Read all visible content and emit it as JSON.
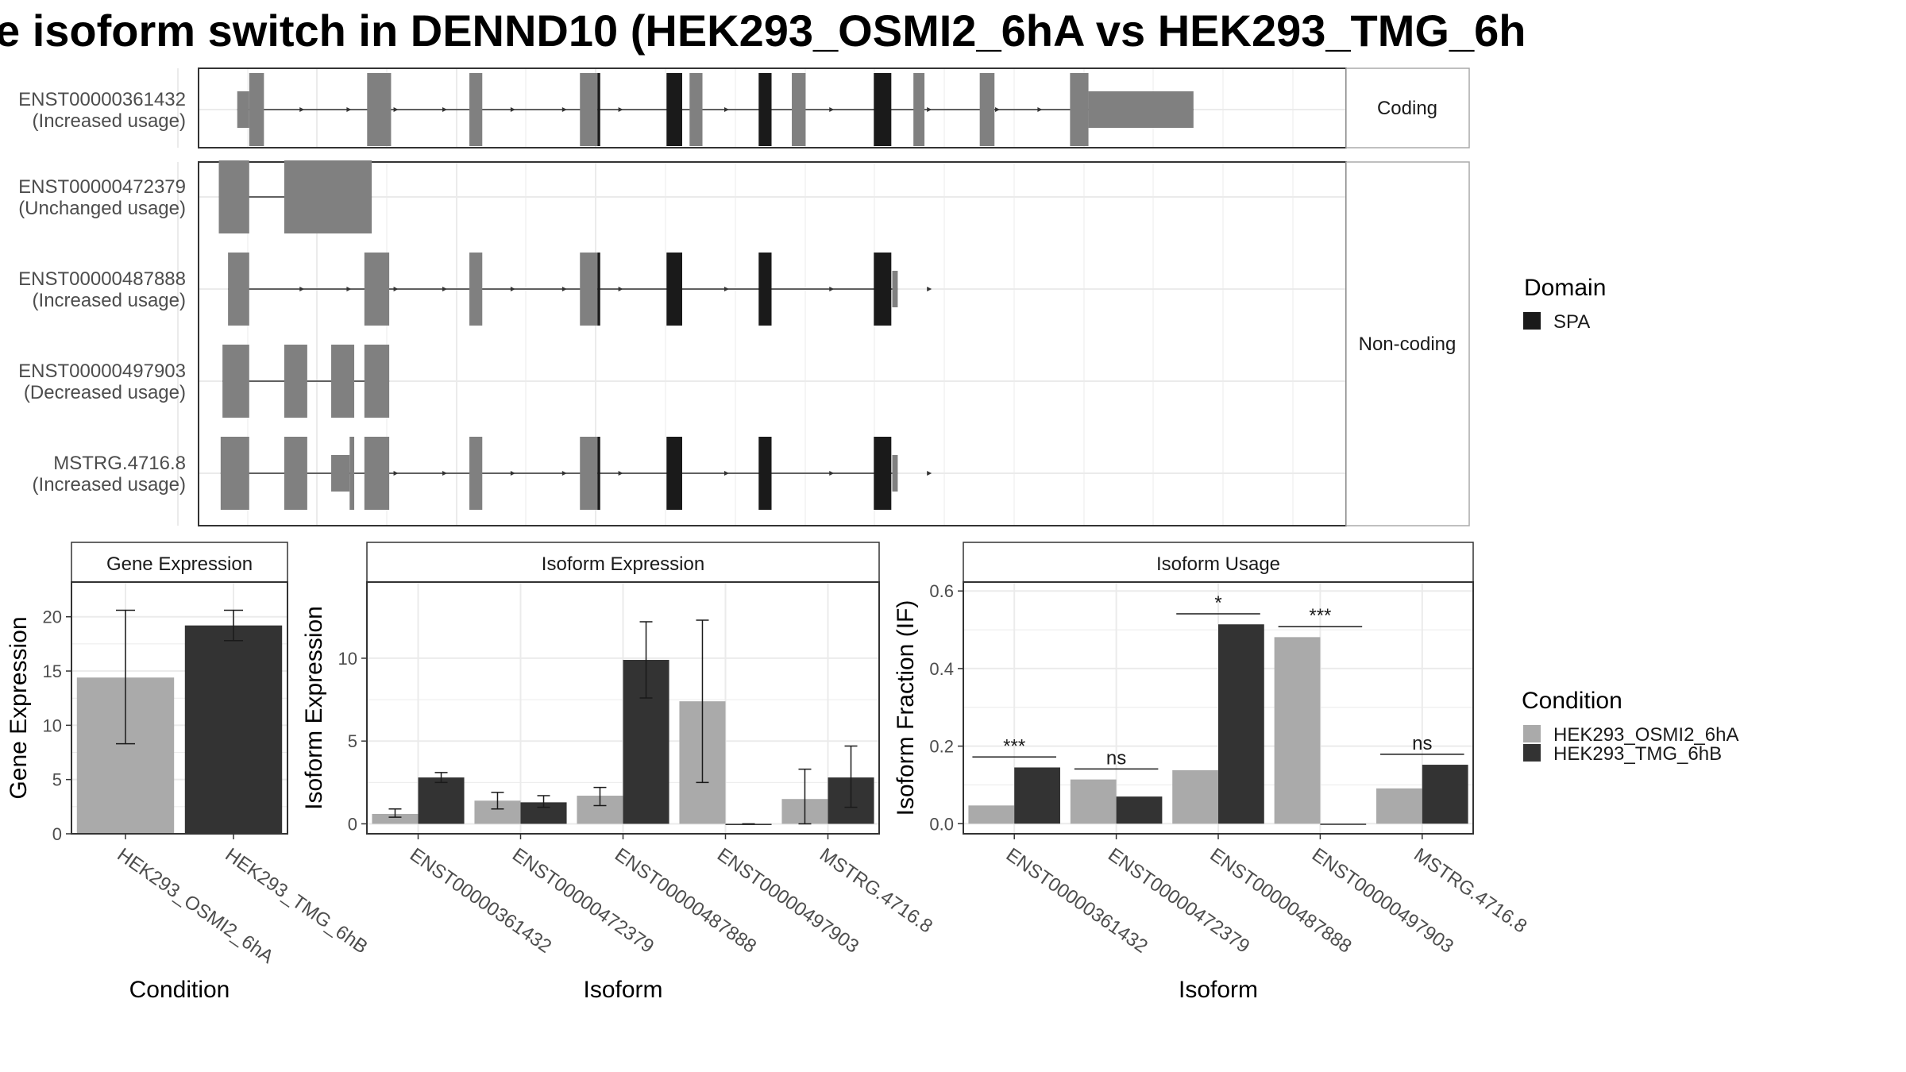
{
  "title": "e isoform switch in DENND10 (HEK293_OSMI2_6hA vs HEK293_TMG_6h",
  "colors": {
    "exon": "#808080",
    "domain": "#1a1a1a",
    "osmi": "#aaaaaa",
    "tmg": "#333333",
    "grid": "#ebebeb",
    "strip_fill": "#ffffff",
    "strip_border": "#aaaaaa"
  },
  "structure": {
    "facets": [
      {
        "label": "Coding",
        "isoforms": [
          0
        ]
      },
      {
        "label": "Non-coding",
        "isoforms": [
          1,
          2,
          3,
          4
        ]
      }
    ],
    "isoforms": [
      {
        "id": "ENST00000361432",
        "usage": "(Increased usage)",
        "exons": [
          [
            4.2,
            5.5,
            "s"
          ],
          [
            5.5,
            7.1,
            "l"
          ],
          [
            18.3,
            20.9,
            "l"
          ],
          [
            29.4,
            30.8,
            "l"
          ],
          [
            41.4,
            43.3,
            "l"
          ],
          [
            53.3,
            54.7,
            "l"
          ],
          [
            64.4,
            65.9,
            "l"
          ],
          [
            77.6,
            78.8,
            "l"
          ],
          [
            84.8,
            86.4,
            "l"
          ],
          [
            94.6,
            96.6,
            "l"
          ],
          [
            96.6,
            108.0,
            "m"
          ]
        ],
        "domains": [
          [
            43.3,
            43.6
          ],
          [
            50.8,
            52.5
          ],
          [
            60.8,
            62.2
          ],
          [
            73.3,
            75.2
          ]
        ],
        "arrows": [
          11.4,
          16.5,
          21.6,
          26.9,
          34.3,
          39.9,
          46.0,
          57.5,
          68.9,
          79.5,
          86.9,
          91.5
        ]
      },
      {
        "id": "ENST00000472379",
        "usage": "(Unchanged usage)",
        "exons": [
          [
            2.2,
            5.5,
            "l"
          ],
          [
            9.3,
            18.8,
            "l"
          ]
        ],
        "domains": [],
        "arrows": []
      },
      {
        "id": "ENST00000487888",
        "usage": "(Increased usage)",
        "exons": [
          [
            3.2,
            5.5,
            "l"
          ],
          [
            18.0,
            20.7,
            "l"
          ],
          [
            29.4,
            30.8,
            "l"
          ],
          [
            41.4,
            43.3,
            "l"
          ],
          [
            75.3,
            75.9,
            "m"
          ]
        ],
        "domains": [
          [
            43.3,
            43.6
          ],
          [
            50.8,
            52.5
          ],
          [
            60.8,
            62.2
          ],
          [
            73.3,
            75.2
          ]
        ],
        "arrows": [
          11.4,
          16.5,
          21.6,
          26.9,
          34.3,
          39.9,
          46.0,
          57.5,
          68.9,
          79.5
        ]
      },
      {
        "id": "ENST00000497903",
        "usage": "(Decreased usage)",
        "exons": [
          [
            2.6,
            5.5,
            "l"
          ],
          [
            9.3,
            11.8,
            "l"
          ],
          [
            14.4,
            16.9,
            "l"
          ],
          [
            18.0,
            20.7,
            "l"
          ]
        ],
        "domains": [],
        "arrows": [
          16.6
        ]
      },
      {
        "id": "MSTRG.4716.8",
        "usage": "(Increased usage)",
        "exons": [
          [
            2.4,
            5.5,
            "l"
          ],
          [
            9.3,
            11.8,
            "l"
          ],
          [
            14.4,
            16.4,
            "m"
          ],
          [
            16.4,
            16.9,
            "l"
          ],
          [
            18.0,
            20.7,
            "l"
          ],
          [
            29.4,
            30.8,
            "l"
          ],
          [
            41.4,
            43.3,
            "l"
          ],
          [
            75.3,
            75.9,
            "m"
          ]
        ],
        "domains": [
          [
            43.3,
            43.6
          ],
          [
            50.8,
            52.5
          ],
          [
            60.8,
            62.2
          ],
          [
            73.3,
            75.2
          ]
        ],
        "arrows": [
          11.4,
          16.5,
          21.6,
          26.9,
          34.3,
          39.9,
          46.0,
          57.5,
          68.9,
          79.5
        ]
      }
    ]
  },
  "legend": {
    "domain_title": "Domain",
    "domain_items": [
      "SPA"
    ],
    "condition_title": "Condition",
    "condition_items": [
      "HEK293_OSMI2_6hA",
      "HEK293_TMG_6hB"
    ]
  },
  "chart_data": [
    {
      "type": "bar",
      "title": "Gene Expression",
      "xlabel": "Condition",
      "ylabel": "Gene Expression",
      "categories": [
        "HEK293_OSMI2_6hA",
        "HEK293_TMG_6hB"
      ],
      "values": [
        14.4,
        19.2
      ],
      "errors": [
        [
          8.3,
          20.6
        ],
        [
          17.8,
          20.6
        ]
      ],
      "ylim": [
        0,
        23.2
      ],
      "yticks": [
        0,
        5,
        10,
        15,
        20
      ],
      "yticklabels": [
        "0",
        "5",
        "10",
        "15",
        "20"
      ]
    },
    {
      "type": "bar",
      "title": "Isoform Expression",
      "xlabel": "Isoform",
      "ylabel": "Isoform Expression",
      "categories": [
        "ENST00000361432",
        "ENST00000472379",
        "ENST00000487888",
        "ENST00000497903",
        "MSTRG.4716.8"
      ],
      "series": [
        {
          "name": "HEK293_OSMI2_6hA",
          "values": [
            0.6,
            1.4,
            1.7,
            7.4,
            1.5
          ],
          "errors": [
            [
              0.4,
              0.9
            ],
            [
              0.9,
              1.9
            ],
            [
              1.1,
              2.2
            ],
            [
              2.5,
              12.3
            ],
            [
              0.0,
              3.3
            ]
          ]
        },
        {
          "name": "HEK293_TMG_6hB",
          "values": [
            2.8,
            1.3,
            9.9,
            0.0,
            2.8
          ],
          "errors": [
            [
              2.5,
              3.1
            ],
            [
              1.0,
              1.7
            ],
            [
              7.6,
              12.2
            ],
            [
              0.0,
              0.0
            ],
            [
              1.0,
              4.7
            ]
          ]
        }
      ],
      "ylim": [
        -0.6,
        14.6
      ],
      "yticks": [
        0,
        5,
        10
      ],
      "yticklabels": [
        "0",
        "5",
        "10"
      ]
    },
    {
      "type": "bar",
      "title": "Isoform Usage",
      "xlabel": "Isoform",
      "ylabel": "Isoform Fraction (IF)",
      "categories": [
        "ENST00000361432",
        "ENST00000472379",
        "ENST00000487888",
        "ENST00000497903",
        "MSTRG.4716.8"
      ],
      "series": [
        {
          "name": "HEK293_OSMI2_6hA",
          "values": [
            0.047,
            0.114,
            0.138,
            0.481,
            0.091
          ]
        },
        {
          "name": "HEK293_TMG_6hB",
          "values": [
            0.145,
            0.07,
            0.514,
            0.0,
            0.152
          ]
        }
      ],
      "significance": [
        {
          "label": "***",
          "y": 0.172
        },
        {
          "label": "ns",
          "y": 0.141
        },
        {
          "label": "*",
          "y": 0.541
        },
        {
          "label": "***",
          "y": 0.508
        },
        {
          "label": "ns",
          "y": 0.179
        }
      ],
      "ylim": [
        -0.026,
        0.623
      ],
      "yticks": [
        0.0,
        0.2,
        0.4,
        0.6
      ],
      "yticklabels": [
        "0.0",
        "0.2",
        "0.4",
        "0.6"
      ]
    }
  ]
}
